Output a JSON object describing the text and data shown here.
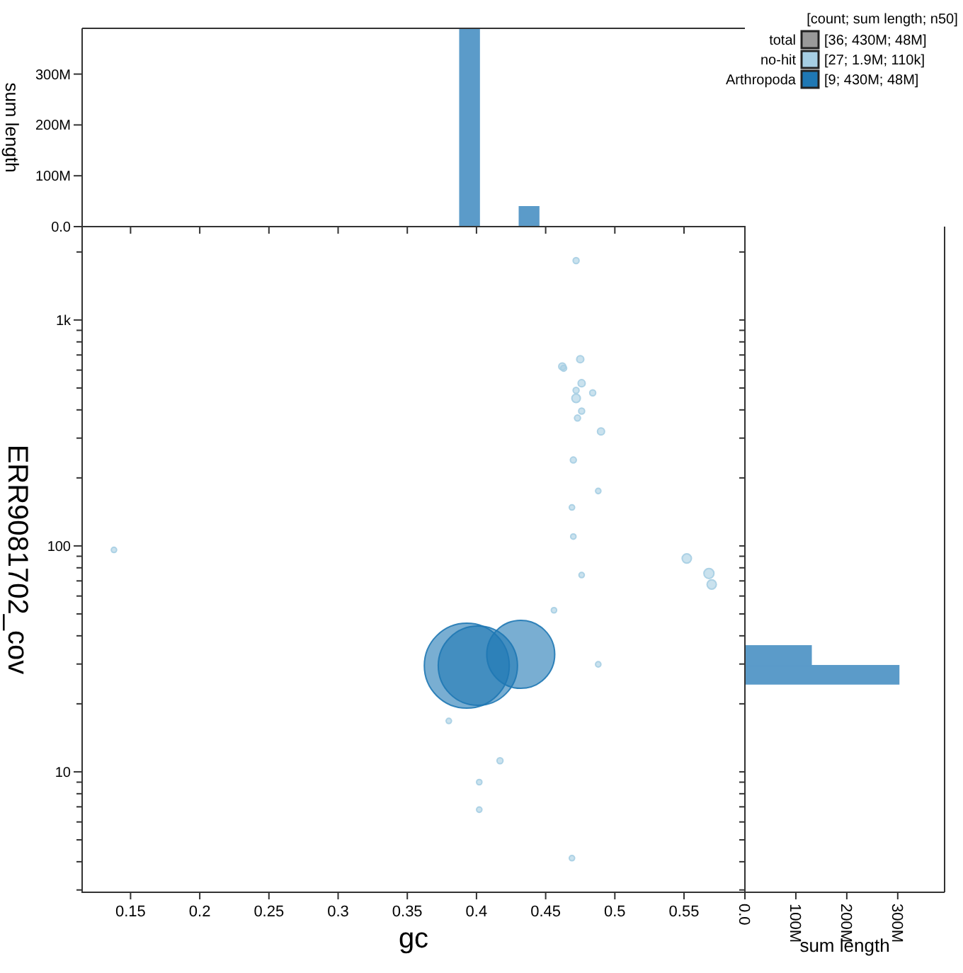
{
  "chart_data": [
    {
      "type": "histogram",
      "ylabel": "sum length",
      "color": "#5b9bc9",
      "bins": [
        0.388,
        0.402,
        0.431,
        0.445
      ],
      "values": [
        388000000,
        0,
        39000000
      ],
      "xlim": [
        0.115,
        0.594
      ],
      "xticks": [
        0.15,
        0.2,
        0.25,
        0.3,
        0.35,
        0.4,
        0.45,
        0.5,
        0.55
      ],
      "ylim": [
        0,
        390000000
      ],
      "yticks": [
        {
          "value": 0,
          "label": "0.0"
        },
        {
          "value": 100000000,
          "label": "100M"
        },
        {
          "value": 200000000,
          "label": "200M"
        },
        {
          "value": 300000000,
          "label": "300M"
        }
      ],
      "tick_labels": "y"
    },
    {
      "type": "bubble",
      "xlabel": "gc",
      "ylabel": "ERR9081702_cov",
      "log": "y",
      "legend": "top right",
      "legend_title": "[count; sum length; n50]",
      "annotations": [
        "[36; 430M; 48M]",
        "[27; 1.9M; 110k]",
        "[9; 430M; 48M]"
      ],
      "xlim": [
        0.115,
        0.594
      ],
      "xticks": [
        0.15,
        0.2,
        0.25,
        0.3,
        0.35,
        0.4,
        0.45,
        0.5,
        0.55
      ],
      "ylim": [
        2.93,
        2590
      ],
      "yticks": [
        {
          "value": 3,
          "label": null
        },
        {
          "value": 4,
          "label": null
        },
        {
          "value": 5,
          "label": null
        },
        {
          "value": 6,
          "label": null
        },
        {
          "value": 7,
          "label": null
        },
        {
          "value": 8,
          "label": null
        },
        {
          "value": 9,
          "label": null
        },
        10,
        {
          "value": 20,
          "label": null
        },
        {
          "value": 30,
          "label": null
        },
        {
          "value": 40,
          "label": null
        },
        {
          "value": 50,
          "label": null
        },
        {
          "value": 60,
          "label": null
        },
        {
          "value": 70,
          "label": null
        },
        {
          "value": 80,
          "label": null
        },
        {
          "value": 90,
          "label": null
        },
        100,
        {
          "value": 200,
          "label": null
        },
        {
          "value": 300,
          "label": null
        },
        {
          "value": 400,
          "label": null
        },
        {
          "value": 500,
          "label": null
        },
        {
          "value": 600,
          "label": null
        },
        {
          "value": 700,
          "label": null
        },
        {
          "value": 800,
          "label": null
        },
        {
          "value": 900,
          "label": null
        },
        {
          "value": 1000,
          "label": "1k"
        },
        {
          "value": 2000,
          "label": null
        }
      ],
      "series": [
        {
          "name": "total",
          "color": "#999999"
        },
        {
          "name": "no-hit",
          "color": "#a6cee3",
          "x": [
            0.472,
            0.475,
            0.462,
            0.463,
            0.476,
            0.472,
            0.484,
            0.472,
            0.476,
            0.473,
            0.49,
            0.47,
            0.488,
            0.469,
            0.47,
            0.552,
            0.568,
            0.57,
            0.476,
            0.456,
            0.38,
            0.488,
            0.417,
            0.402,
            0.402,
            0.469,
            0.138
          ],
          "values": [
            1832,
            670,
            623,
            612,
            525,
            488,
            476,
            450,
            395,
            368,
            321,
            240,
            175,
            148,
            110,
            88,
            75.5,
            67.5,
            74.3,
            51.9,
            16.8,
            29.9,
            11.2,
            9.0,
            6.8,
            4.15,
            96
          ],
          "sizes": [
            0.005,
            0.007,
            0.007,
            0.005,
            0.007,
            0.005,
            0.005,
            0.01,
            0.005,
            0.005,
            0.007,
            0.005,
            0.004,
            0.004,
            0.004,
            0.012,
            0.014,
            0.012,
            0.004,
            0.004,
            0.004,
            0.004,
            0.005,
            0.004,
            0.004,
            0.004,
            0.004
          ]
        },
        {
          "name": "Arthropoda",
          "color": "#1f78b4",
          "x": [
            0.393,
            0.401,
            0.432
          ],
          "values": [
            29.5,
            29.5,
            33.1
          ],
          "sizes": [
            1,
            0.87,
            0.64
          ]
        }
      ]
    },
    {
      "type": "histogram",
      "orientation": "horizontal",
      "xlabel": "sum length",
      "color": "#5b9bc9",
      "log": "y",
      "bins": [
        24.5,
        29.5,
        36.1
      ],
      "values": [
        302000000,
        130000000
      ],
      "xlim": [
        0,
        392000000
      ],
      "xticks": [
        {
          "value": 0,
          "label": "0.0"
        },
        {
          "value": 100000000,
          "label": "100M"
        },
        {
          "value": 200000000,
          "label": "200M"
        },
        {
          "value": 300000000,
          "label": "300M"
        }
      ],
      "ylim": [
        2.93,
        2590
      ],
      "yticks": [
        {
          "value": 3,
          "label": null
        },
        {
          "value": 4,
          "label": null
        },
        {
          "value": 5,
          "label": null
        },
        {
          "value": 6,
          "label": null
        },
        {
          "value": 7,
          "label": null
        },
        {
          "value": 8,
          "label": null
        },
        {
          "value": 9,
          "label": null
        },
        {
          "value": 10,
          "label": null
        },
        {
          "value": 20,
          "label": null
        },
        {
          "value": 30,
          "label": null
        },
        {
          "value": 40,
          "label": null
        },
        {
          "value": 50,
          "label": null
        },
        {
          "value": 60,
          "label": null
        },
        {
          "value": 70,
          "label": null
        },
        {
          "value": 80,
          "label": null
        },
        {
          "value": 90,
          "label": null
        },
        {
          "value": 100,
          "label": null
        },
        {
          "value": 200,
          "label": null
        },
        {
          "value": 300,
          "label": null
        },
        {
          "value": 400,
          "label": null
        },
        {
          "value": 500,
          "label": null
        },
        {
          "value": 600,
          "label": null
        },
        {
          "value": 700,
          "label": null
        },
        {
          "value": 800,
          "label": null
        },
        {
          "value": 900,
          "label": null
        },
        {
          "value": 1000,
          "label": null
        },
        {
          "value": 2000,
          "label": null
        }
      ],
      "tick_labels": "x"
    }
  ]
}
